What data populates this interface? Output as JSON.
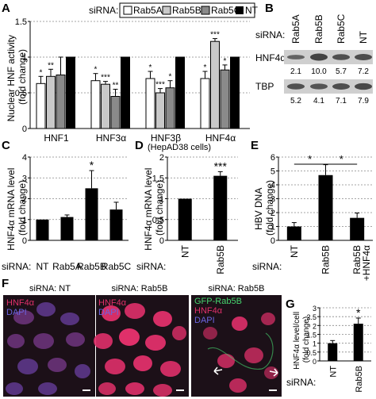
{
  "panels": {
    "A": "A",
    "B": "B",
    "C": "C",
    "D": "D",
    "E": "E",
    "F": "F",
    "G": "G"
  },
  "colors": {
    "rab5a": "#ffffff",
    "rab5b": "#c9c9c9",
    "rab5c": "#8a8a8a",
    "nt": "#000000",
    "micro_bg": "#1c1018",
    "nucleus_red": "#e0306a",
    "dapi_blue": "#5a4cc8",
    "gfp_green": "#46d36e"
  },
  "panelA": {
    "sirna_label": "siRNA:",
    "legend": [
      {
        "key": "rab5a",
        "label": "Rab5A"
      },
      {
        "key": "rab5b",
        "label": "Rab5B"
      },
      {
        "key": "rab5c",
        "label": "Rab5C"
      },
      {
        "key": "nt",
        "label": "NT"
      }
    ],
    "ylabel_1": "Nuclear HNF activity",
    "ylabel_2": "(fold change)"
  },
  "panelB": {
    "sirna_label": "siRNA:",
    "lanes": [
      "Rab5A",
      "Rab5B",
      "Rab5C",
      "NT"
    ],
    "rows": [
      {
        "label": "HNF4α",
        "values": [
          "2.1",
          "10.0",
          "5.7",
          "7.2"
        ]
      },
      {
        "label": "TBP",
        "values": [
          "5.2",
          "4.1",
          "7.1",
          "7.9"
        ]
      }
    ]
  },
  "panelC": {
    "ylabel_1": "HNF4α mRNA level",
    "ylabel_2": "(fold change)",
    "sirna_label": "siRNA:"
  },
  "panelD": {
    "header": "(HepAD38 cells)",
    "ylabel_1": "HNF4α mRNA level",
    "ylabel_2": "(fold change)",
    "sirna_label": "siRNA:"
  },
  "panelE": {
    "ylabel_1": "HBV DNA",
    "ylabel_2": "(fold change)",
    "sirna_label": "siRNA:"
  },
  "panelF": {
    "images": [
      {
        "title": "siRNA: NT",
        "labels": [
          "HNF4α",
          "DAPI"
        ]
      },
      {
        "title": "siRNA: Rab5B",
        "labels": [
          "HNF4α",
          "DAPI"
        ]
      },
      {
        "title": "siRNA: Rab5B",
        "labels": [
          "GFP-Rab5B",
          "HNF4α",
          "DAPI"
        ]
      }
    ]
  },
  "panelG": {
    "ylabel_1": "HNF4α level/cell",
    "ylabel_2": "(fold change)",
    "sirna_label": "siRNA:"
  },
  "chart_data": [
    {
      "id": "A",
      "type": "bar",
      "categories": [
        "HNF1",
        "HNF3α",
        "HNF3β",
        "HNF4α"
      ],
      "ylim": [
        0,
        1.5
      ],
      "yticks": [
        "0",
        "0.5",
        "1",
        "1.5"
      ],
      "grid": true,
      "series": [
        {
          "name": "Rab5A",
          "values": [
            0.63,
            0.67,
            0.7,
            0.7
          ],
          "err": [
            0.1,
            0.1,
            0.1,
            0.1
          ],
          "sig": [
            "*",
            "*",
            "*",
            "*"
          ]
        },
        {
          "name": "Rab5B",
          "values": [
            0.73,
            0.62,
            0.5,
            1.22
          ],
          "err": [
            0.1,
            0.04,
            0.06,
            0.04
          ],
          "sig": [
            "**",
            "***",
            "***",
            "***"
          ]
        },
        {
          "name": "Rab5C",
          "values": [
            0.75,
            0.45,
            0.57,
            0.82
          ],
          "err": [
            0.25,
            0.1,
            0.1,
            0.07
          ],
          "sig": [
            "",
            "**",
            "*",
            "*"
          ]
        },
        {
          "name": "NT",
          "values": [
            1.0,
            1.0,
            1.0,
            1.0
          ],
          "err": [
            0,
            0,
            0,
            0
          ],
          "sig": [
            "",
            "",
            "",
            ""
          ]
        }
      ]
    },
    {
      "id": "C",
      "type": "bar",
      "categories": [
        "NT",
        "Rab5A",
        "Rab5B",
        "Rab5C"
      ],
      "values": [
        1.0,
        1.12,
        2.5,
        1.48
      ],
      "err": [
        0,
        0.1,
        0.85,
        0.35
      ],
      "sig": [
        "",
        "",
        "*",
        ""
      ],
      "ylim": [
        0,
        4
      ],
      "yticks": [
        "0",
        "1",
        "2",
        "3",
        "4"
      ],
      "grid": true
    },
    {
      "id": "D",
      "type": "bar",
      "categories": [
        "NT",
        "Rab5B"
      ],
      "values": [
        1.0,
        1.55
      ],
      "err": [
        0,
        0.1
      ],
      "sig": [
        "",
        "***"
      ],
      "ylim": [
        0,
        2
      ],
      "yticks": [
        "0",
        "0.5",
        "1",
        "1.5",
        "2"
      ],
      "grid": true
    },
    {
      "id": "E",
      "type": "bar",
      "categories": [
        "NT",
        "Rab5B",
        "Rab5B +HNF4α"
      ],
      "values": [
        1.0,
        4.7,
        1.62
      ],
      "err": [
        0.28,
        0.75,
        0.35
      ],
      "sig_brackets": [
        {
          "from": 0,
          "to": 1,
          "label": "*"
        },
        {
          "from": 1,
          "to": 2,
          "label": "*"
        }
      ],
      "ylim": [
        0,
        6
      ],
      "yticks": [
        "0",
        "1",
        "2",
        "3",
        "4",
        "5",
        "6"
      ],
      "grid": true
    },
    {
      "id": "G",
      "type": "bar",
      "categories": [
        "NT",
        "Rab5B"
      ],
      "values": [
        1.0,
        2.1
      ],
      "err": [
        0.15,
        0.32
      ],
      "sig": [
        "",
        "*"
      ],
      "ylim": [
        0,
        3
      ],
      "yticks": [
        "0",
        "0.5",
        "1",
        "1.5",
        "2",
        "2.5",
        "3"
      ],
      "grid": true
    }
  ]
}
